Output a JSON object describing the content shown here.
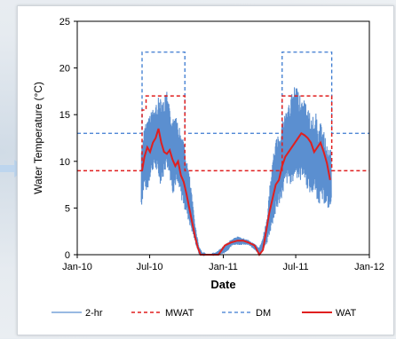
{
  "chart_data": {
    "type": "line",
    "title": "",
    "xlabel": "Date",
    "ylabel": "Water Temperature (°C)",
    "xlim": [
      "2010-01-01",
      "2012-01-01"
    ],
    "ylim": [
      0,
      25
    ],
    "yticks": [
      0,
      5,
      10,
      15,
      20,
      25
    ],
    "xtick_labels": [
      {
        "date": "2010-01-01",
        "label": "Jan-10"
      },
      {
        "date": "2010-07-01",
        "label": "Jul-10"
      },
      {
        "date": "2011-01-01",
        "label": "Jan-11"
      },
      {
        "date": "2011-07-01",
        "label": "Jul-11"
      },
      {
        "date": "2012-01-01",
        "label": "Jan-12"
      }
    ],
    "grid": false,
    "legend_position": "bottom",
    "series": [
      {
        "name": "2-hr",
        "color": "#5b8fd0",
        "style": "solid",
        "x": [
          "2010-06-10",
          "2010-06-18",
          "2010-06-25",
          "2010-07-03",
          "2010-07-12",
          "2010-07-20",
          "2010-07-28",
          "2010-08-05",
          "2010-08-13",
          "2010-08-20",
          "2010-08-28",
          "2010-09-05",
          "2010-09-14",
          "2010-09-22",
          "2010-09-30",
          "2010-10-08",
          "2010-10-16",
          "2010-10-24",
          "2010-11-01",
          "2010-11-10",
          "2010-11-20",
          "2010-12-01",
          "2010-12-15",
          "2011-01-01",
          "2011-01-15",
          "2011-01-25",
          "2011-02-05",
          "2011-02-20",
          "2011-03-05",
          "2011-03-20",
          "2011-04-01",
          "2011-04-10",
          "2011-04-20",
          "2011-04-28",
          "2011-05-06",
          "2011-05-14",
          "2011-05-22",
          "2011-05-30",
          "2011-06-07",
          "2011-06-15",
          "2011-06-23",
          "2011-07-01",
          "2011-07-10",
          "2011-07-18",
          "2011-07-26",
          "2011-08-03",
          "2011-08-11",
          "2011-08-19",
          "2011-08-27",
          "2011-09-04",
          "2011-09-12",
          "2011-09-20",
          "2011-09-28"
        ],
        "y_min": [
          4.5,
          7,
          6,
          8,
          9,
          8,
          7,
          8,
          9,
          8,
          6,
          7,
          6,
          5,
          4,
          3,
          2,
          1,
          0,
          0,
          0,
          0,
          0,
          0,
          0.5,
          1,
          1,
          1,
          1,
          0.5,
          0,
          0.5,
          1,
          2,
          3,
          4,
          5,
          6,
          7,
          7,
          7,
          8,
          7,
          8,
          7,
          6,
          6,
          6,
          5,
          5,
          5,
          4.5,
          4.5
        ],
        "y_max": [
          12,
          14,
          15,
          16,
          16,
          17,
          18,
          17,
          18,
          16,
          15,
          16,
          14,
          13,
          11,
          9,
          6,
          3,
          1,
          0.2,
          0,
          0,
          0.3,
          1,
          1.5,
          1.8,
          2,
          1.8,
          1.6,
          1.2,
          0.8,
          2,
          4,
          8,
          11,
          13,
          14,
          15,
          16,
          17,
          18,
          19,
          18,
          17,
          17,
          16,
          15,
          16,
          14,
          15,
          13,
          12,
          11.5
        ]
      },
      {
        "name": "MWAT",
        "color": "#e01f1f",
        "style": "dashed",
        "x": [
          "2010-01-01",
          "2010-06-12",
          "2010-06-12",
          "2010-06-22",
          "2010-06-22",
          "2010-09-27",
          "2010-09-27",
          "2011-05-28",
          "2011-05-28",
          "2011-09-29",
          "2011-09-29",
          "2012-01-01"
        ],
        "y": [
          9,
          9,
          15.5,
          15.5,
          17,
          17,
          9,
          9,
          17,
          17,
          9,
          9
        ]
      },
      {
        "name": "DM",
        "color": "#3b7ad0",
        "style": "dashed",
        "x": [
          "2010-01-01",
          "2010-06-12",
          "2010-06-12",
          "2010-09-27",
          "2010-09-27",
          "2011-05-28",
          "2011-05-28",
          "2011-09-29",
          "2011-09-29",
          "2012-01-01"
        ],
        "y": [
          13,
          13,
          21.7,
          21.7,
          13,
          13,
          21.7,
          21.7,
          13,
          13
        ]
      },
      {
        "name": "WAT",
        "color": "#e01f1f",
        "style": "solid",
        "x": [
          "2010-06-12",
          "2010-06-18",
          "2010-06-25",
          "2010-07-02",
          "2010-07-09",
          "2010-07-16",
          "2010-07-23",
          "2010-07-30",
          "2010-08-06",
          "2010-08-13",
          "2010-08-20",
          "2010-08-27",
          "2010-09-03",
          "2010-09-10",
          "2010-09-17",
          "2010-09-24",
          "2010-10-01",
          "2010-10-08",
          "2010-10-15",
          "2010-10-22",
          "2010-10-29",
          "2010-11-05",
          "2010-11-15",
          "2010-12-01",
          "2010-12-20",
          "2011-01-05",
          "2011-01-20",
          "2011-02-05",
          "2011-02-20",
          "2011-03-05",
          "2011-03-20",
          "2011-04-01",
          "2011-04-10",
          "2011-04-18",
          "2011-04-26",
          "2011-05-04",
          "2011-05-12",
          "2011-05-20",
          "2011-05-28",
          "2011-06-05",
          "2011-06-13",
          "2011-06-21",
          "2011-06-29",
          "2011-07-07",
          "2011-07-15",
          "2011-07-23",
          "2011-07-31",
          "2011-08-08",
          "2011-08-16",
          "2011-08-24",
          "2011-09-01",
          "2011-09-09",
          "2011-09-17",
          "2011-09-25"
        ],
        "y": [
          9,
          10.5,
          11.5,
          11,
          12,
          12.5,
          13.5,
          12,
          11,
          10.8,
          11.2,
          10.2,
          9.5,
          10,
          8.5,
          7.8,
          6.5,
          5,
          3.5,
          2,
          0.8,
          0,
          0,
          0,
          0,
          1,
          1.3,
          1.5,
          1.5,
          1.3,
          1,
          0,
          0.5,
          2.5,
          4.5,
          6,
          7.5,
          8,
          9.5,
          10.5,
          11,
          11.5,
          12,
          12.5,
          13,
          12.8,
          12.5,
          12,
          11,
          11.5,
          12,
          11,
          9.8,
          8
        ]
      }
    ]
  }
}
